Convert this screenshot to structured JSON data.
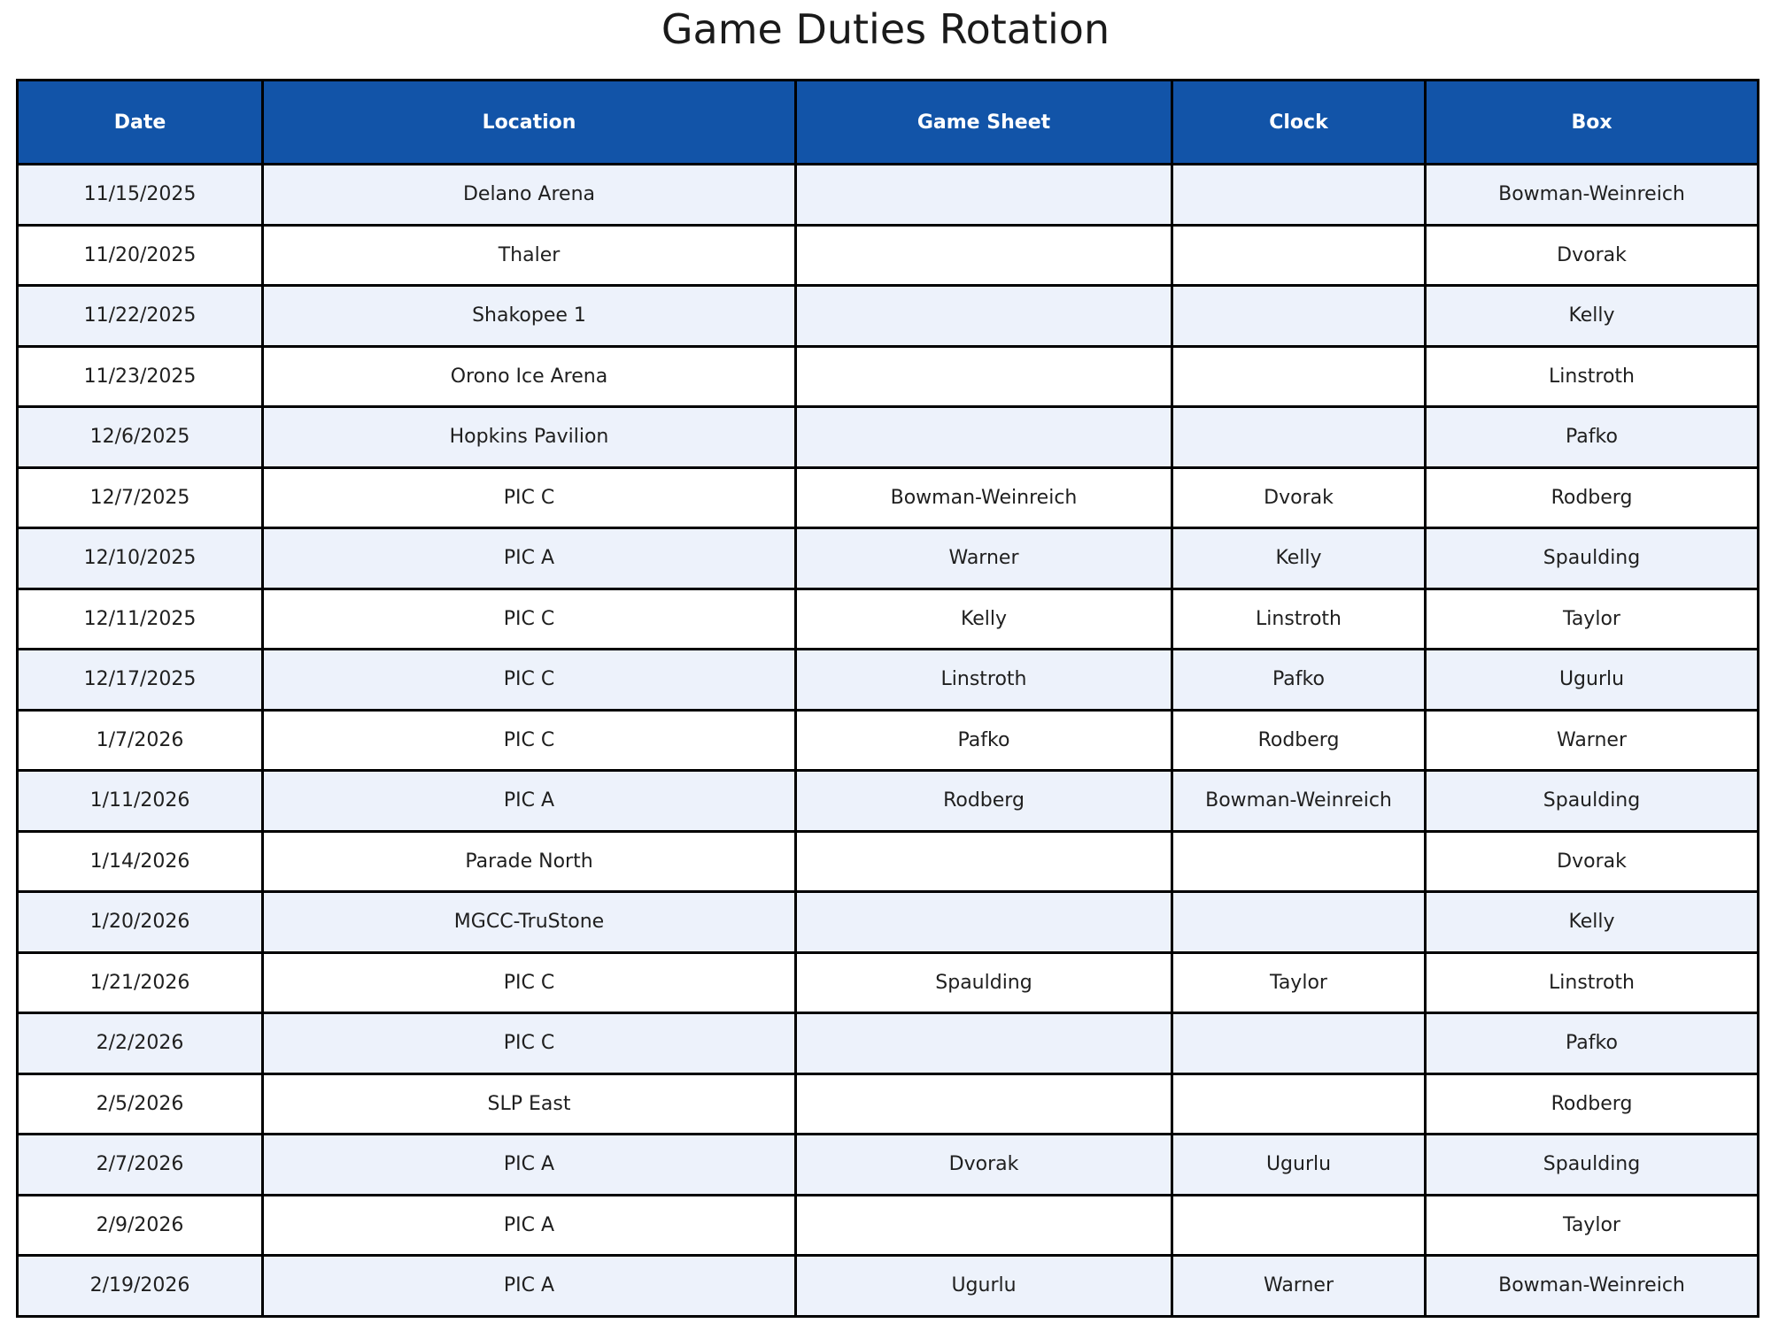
{
  "title": "Game Duties Rotation",
  "colors": {
    "header_bg": "#1254a8",
    "header_text": "#ffffff",
    "row_bg": "#ffffff",
    "row_alt_bg": "#edf2fb",
    "border": "#000000",
    "title_text": "#1a1a1a",
    "cell_text": "#1f1f1f"
  },
  "table": {
    "columns": [
      "Date",
      "Location",
      "Game Sheet",
      "Clock",
      "Box"
    ],
    "row_keys": [
      "date",
      "location",
      "game_sheet",
      "clock",
      "box"
    ],
    "rows": [
      {
        "date": "11/15/2025",
        "location": "Delano Arena",
        "game_sheet": "",
        "clock": "",
        "box": "Bowman-Weinreich"
      },
      {
        "date": "11/20/2025",
        "location": "Thaler",
        "game_sheet": "",
        "clock": "",
        "box": "Dvorak"
      },
      {
        "date": "11/22/2025",
        "location": "Shakopee 1",
        "game_sheet": "",
        "clock": "",
        "box": "Kelly"
      },
      {
        "date": "11/23/2025",
        "location": "Orono Ice Arena",
        "game_sheet": "",
        "clock": "",
        "box": "Linstroth"
      },
      {
        "date": "12/6/2025",
        "location": "Hopkins Pavilion",
        "game_sheet": "",
        "clock": "",
        "box": "Pafko"
      },
      {
        "date": "12/7/2025",
        "location": "PIC C",
        "game_sheet": "Bowman-Weinreich",
        "clock": "Dvorak",
        "box": "Rodberg"
      },
      {
        "date": "12/10/2025",
        "location": "PIC A",
        "game_sheet": "Warner",
        "clock": "Kelly",
        "box": "Spaulding"
      },
      {
        "date": "12/11/2025",
        "location": "PIC C",
        "game_sheet": "Kelly",
        "clock": "Linstroth",
        "box": "Taylor"
      },
      {
        "date": "12/17/2025",
        "location": "PIC C",
        "game_sheet": "Linstroth",
        "clock": "Pafko",
        "box": "Ugurlu"
      },
      {
        "date": "1/7/2026",
        "location": "PIC C",
        "game_sheet": "Pafko",
        "clock": "Rodberg",
        "box": "Warner"
      },
      {
        "date": "1/11/2026",
        "location": "PIC A",
        "game_sheet": "Rodberg",
        "clock": "Bowman-Weinreich",
        "box": "Spaulding"
      },
      {
        "date": "1/14/2026",
        "location": "Parade North",
        "game_sheet": "",
        "clock": "",
        "box": "Dvorak"
      },
      {
        "date": "1/20/2026",
        "location": "MGCC-TruStone",
        "game_sheet": "",
        "clock": "",
        "box": "Kelly"
      },
      {
        "date": "1/21/2026",
        "location": "PIC C",
        "game_sheet": "Spaulding",
        "clock": "Taylor",
        "box": "Linstroth"
      },
      {
        "date": "2/2/2026",
        "location": "PIC C",
        "game_sheet": "",
        "clock": "",
        "box": "Pafko"
      },
      {
        "date": "2/5/2026",
        "location": "SLP East",
        "game_sheet": "",
        "clock": "",
        "box": "Rodberg"
      },
      {
        "date": "2/7/2026",
        "location": "PIC A",
        "game_sheet": "Dvorak",
        "clock": "Ugurlu",
        "box": "Spaulding"
      },
      {
        "date": "2/9/2026",
        "location": "PIC A",
        "game_sheet": "",
        "clock": "",
        "box": "Taylor"
      },
      {
        "date": "2/19/2026",
        "location": "PIC A",
        "game_sheet": "Ugurlu",
        "clock": "Warner",
        "box": "Bowman-Weinreich"
      }
    ]
  }
}
